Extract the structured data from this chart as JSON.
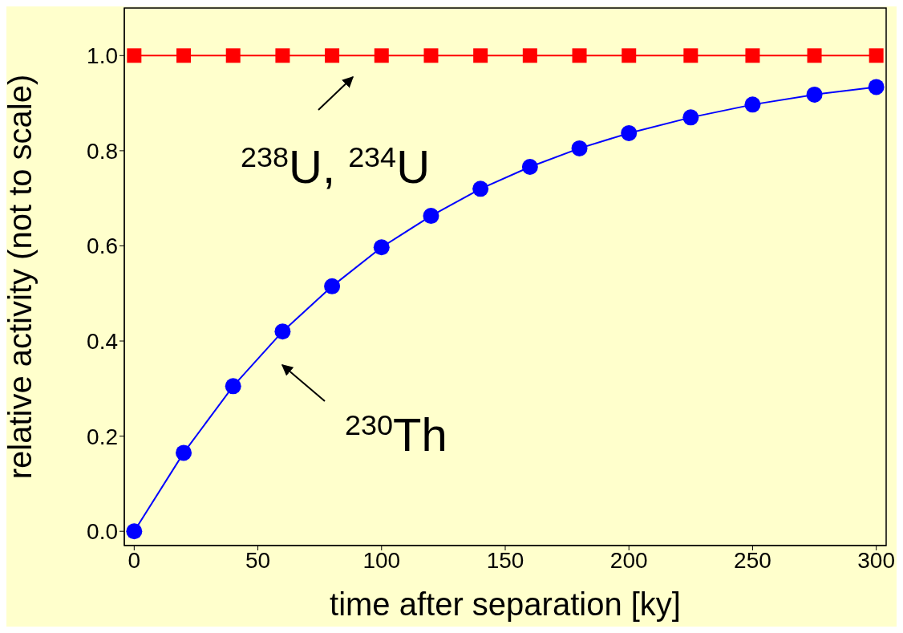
{
  "chart_data": {
    "type": "line",
    "xlabel": "time after separation [ky]",
    "ylabel": "relative activity (not to scale)",
    "xlim": [
      -4,
      304
    ],
    "ylim": [
      -0.03,
      1.1
    ],
    "xticks": [
      0,
      50,
      100,
      150,
      200,
      250,
      300
    ],
    "yticks": [
      {
        "value": 0,
        "label": "0.0"
      },
      {
        "value": 0.2,
        "label": "0.2"
      },
      {
        "value": 0.4,
        "label": "0.4"
      },
      {
        "value": 0.6,
        "label": "0.6"
      },
      {
        "value": 0.8,
        "label": "0.8"
      },
      {
        "value": 1,
        "label": "1.0"
      }
    ],
    "x": [
      0,
      20,
      40,
      60,
      80,
      100,
      120,
      140,
      160,
      180,
      200,
      225,
      250,
      275,
      300
    ],
    "series": [
      {
        "color": "#ff0000",
        "marker": "square",
        "values": [
          1,
          1,
          1,
          1,
          1,
          1,
          1,
          1,
          1,
          1,
          1,
          1,
          1,
          1,
          1
        ]
      },
      {
        "color": "#0000ff",
        "marker": "circle",
        "values": [
          0,
          0.165,
          0.305,
          0.42,
          0.515,
          0.597,
          0.663,
          0.72,
          0.766,
          0.805,
          0.837,
          0.87,
          0.897,
          0.918,
          0.934
        ]
      }
    ],
    "annotations": [
      "$^{238}$U, $^{234}$U",
      "$^{230}$Th"
    ]
  }
}
